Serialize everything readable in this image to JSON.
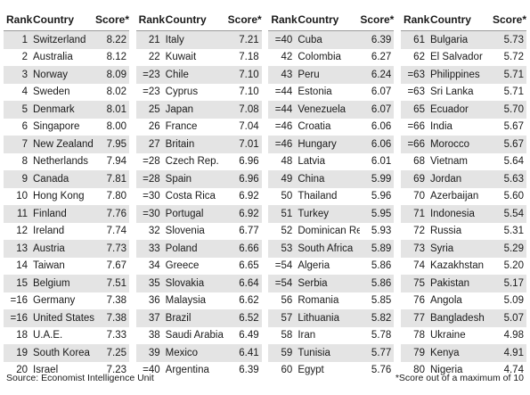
{
  "headers": {
    "rank": "Rank",
    "country": "Country",
    "score": "Score*"
  },
  "columns": [
    [
      {
        "rank": "1",
        "country": "Switzerland",
        "score": "8.22"
      },
      {
        "rank": "2",
        "country": "Australia",
        "score": "8.12"
      },
      {
        "rank": "3",
        "country": "Norway",
        "score": "8.09"
      },
      {
        "rank": "4",
        "country": "Sweden",
        "score": "8.02"
      },
      {
        "rank": "5",
        "country": "Denmark",
        "score": "8.01"
      },
      {
        "rank": "6",
        "country": "Singapore",
        "score": "8.00"
      },
      {
        "rank": "7",
        "country": "New Zealand",
        "score": "7.95"
      },
      {
        "rank": "8",
        "country": "Netherlands",
        "score": "7.94"
      },
      {
        "rank": "9",
        "country": "Canada",
        "score": "7.81"
      },
      {
        "rank": "10",
        "country": "Hong Kong",
        "score": "7.80"
      },
      {
        "rank": "11",
        "country": "Finland",
        "score": "7.76"
      },
      {
        "rank": "12",
        "country": "Ireland",
        "score": "7.74"
      },
      {
        "rank": "13",
        "country": "Austria",
        "score": "7.73"
      },
      {
        "rank": "14",
        "country": "Taiwan",
        "score": "7.67"
      },
      {
        "rank": "15",
        "country": "Belgium",
        "score": "7.51"
      },
      {
        "rank": "=16",
        "country": "Germany",
        "score": "7.38"
      },
      {
        "rank": "=16",
        "country": "United States",
        "score": "7.38"
      },
      {
        "rank": "18",
        "country": "U.A.E.",
        "score": "7.33"
      },
      {
        "rank": "19",
        "country": "South Korea",
        "score": "7.25"
      },
      {
        "rank": "20",
        "country": "Israel",
        "score": "7.23"
      }
    ],
    [
      {
        "rank": "21",
        "country": "Italy",
        "score": "7.21"
      },
      {
        "rank": "22",
        "country": "Kuwait",
        "score": "7.18"
      },
      {
        "rank": "=23",
        "country": "Chile",
        "score": "7.10"
      },
      {
        "rank": "=23",
        "country": "Cyprus",
        "score": "7.10"
      },
      {
        "rank": "25",
        "country": "Japan",
        "score": "7.08"
      },
      {
        "rank": "26",
        "country": "France",
        "score": "7.04"
      },
      {
        "rank": "27",
        "country": "Britain",
        "score": "7.01"
      },
      {
        "rank": "=28",
        "country": "Czech Rep.",
        "score": "6.96"
      },
      {
        "rank": "=28",
        "country": "Spain",
        "score": "6.96"
      },
      {
        "rank": "=30",
        "country": "Costa Rica",
        "score": "6.92"
      },
      {
        "rank": "=30",
        "country": "Portugal",
        "score": "6.92"
      },
      {
        "rank": "32",
        "country": "Slovenia",
        "score": "6.77"
      },
      {
        "rank": "33",
        "country": "Poland",
        "score": "6.66"
      },
      {
        "rank": "34",
        "country": "Greece",
        "score": "6.65"
      },
      {
        "rank": "35",
        "country": "Slovakia",
        "score": "6.64"
      },
      {
        "rank": "36",
        "country": "Malaysia",
        "score": "6.62"
      },
      {
        "rank": "37",
        "country": "Brazil",
        "score": "6.52"
      },
      {
        "rank": "38",
        "country": "Saudi Arabia",
        "score": "6.49"
      },
      {
        "rank": "39",
        "country": "Mexico",
        "score": "6.41"
      },
      {
        "rank": "=40",
        "country": "Argentina",
        "score": "6.39"
      }
    ],
    [
      {
        "rank": "=40",
        "country": "Cuba",
        "score": "6.39"
      },
      {
        "rank": "42",
        "country": "Colombia",
        "score": "6.27"
      },
      {
        "rank": "43",
        "country": "Peru",
        "score": "6.24"
      },
      {
        "rank": "=44",
        "country": "Estonia",
        "score": "6.07"
      },
      {
        "rank": "=44",
        "country": "Venezuela",
        "score": "6.07"
      },
      {
        "rank": "=46",
        "country": "Croatia",
        "score": "6.06"
      },
      {
        "rank": "=46",
        "country": "Hungary",
        "score": "6.06"
      },
      {
        "rank": "48",
        "country": "Latvia",
        "score": "6.01"
      },
      {
        "rank": "49",
        "country": "China",
        "score": "5.99"
      },
      {
        "rank": "50",
        "country": "Thailand",
        "score": "5.96"
      },
      {
        "rank": "51",
        "country": "Turkey",
        "score": "5.95"
      },
      {
        "rank": "52",
        "country": "Dominican Rep.",
        "score": "5.93"
      },
      {
        "rank": "53",
        "country": "South Africa",
        "score": "5.89"
      },
      {
        "rank": "=54",
        "country": "Algeria",
        "score": "5.86"
      },
      {
        "rank": "=54",
        "country": "Serbia",
        "score": "5.86"
      },
      {
        "rank": "56",
        "country": "Romania",
        "score": "5.85"
      },
      {
        "rank": "57",
        "country": "Lithuania",
        "score": "5.82"
      },
      {
        "rank": "58",
        "country": "Iran",
        "score": "5.78"
      },
      {
        "rank": "59",
        "country": "Tunisia",
        "score": "5.77"
      },
      {
        "rank": "60",
        "country": "Egypt",
        "score": "5.76"
      }
    ],
    [
      {
        "rank": "61",
        "country": "Bulgaria",
        "score": "5.73"
      },
      {
        "rank": "62",
        "country": "El Salvador",
        "score": "5.72"
      },
      {
        "rank": "=63",
        "country": "Philippines",
        "score": "5.71"
      },
      {
        "rank": "=63",
        "country": "Sri Lanka",
        "score": "5.71"
      },
      {
        "rank": "65",
        "country": "Ecuador",
        "score": "5.70"
      },
      {
        "rank": "=66",
        "country": "India",
        "score": "5.67"
      },
      {
        "rank": "=66",
        "country": "Morocco",
        "score": "5.67"
      },
      {
        "rank": "68",
        "country": "Vietnam",
        "score": "5.64"
      },
      {
        "rank": "69",
        "country": "Jordan",
        "score": "5.63"
      },
      {
        "rank": "70",
        "country": "Azerbaijan",
        "score": "5.60"
      },
      {
        "rank": "71",
        "country": "Indonesia",
        "score": "5.54"
      },
      {
        "rank": "72",
        "country": "Russia",
        "score": "5.31"
      },
      {
        "rank": "73",
        "country": "Syria",
        "score": "5.29"
      },
      {
        "rank": "74",
        "country": "Kazakhstan",
        "score": "5.20"
      },
      {
        "rank": "75",
        "country": "Pakistan",
        "score": "5.17"
      },
      {
        "rank": "76",
        "country": "Angola",
        "score": "5.09"
      },
      {
        "rank": "77",
        "country": "Bangladesh",
        "score": "5.07"
      },
      {
        "rank": "78",
        "country": "Ukraine",
        "score": "4.98"
      },
      {
        "rank": "79",
        "country": "Kenya",
        "score": "4.91"
      },
      {
        "rank": "80",
        "country": "Nigeria",
        "score": "4.74"
      }
    ]
  ],
  "footer": {
    "source": "Source: Economist Intelligence Unit",
    "note": "*Score out of a maximum of 10"
  }
}
